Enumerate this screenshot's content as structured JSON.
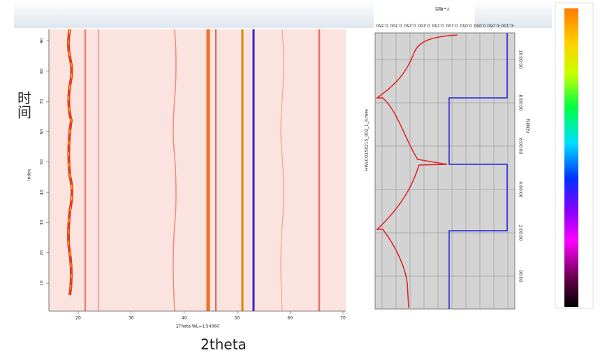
{
  "left_plot": {
    "side_label": "时间",
    "bottom_label": "2theta",
    "x_title": "2Theta WL=1.54060",
    "y_title": "Index",
    "xticks": [
      "20",
      "30",
      "40",
      "50",
      "60",
      "70"
    ],
    "yticks": [
      "10",
      "20",
      "30",
      "40",
      "50",
      "60",
      "70",
      "80",
      "90"
    ]
  },
  "right_plot": {
    "top_title": "Y=电压",
    "file_label": "HWLCO150215_002_1_4.mes",
    "right_title": "时间(h)",
    "top_ticks": [
      "0.350",
      "0.300",
      "0.250",
      "0.200",
      "0.150",
      "0.100",
      "0.050",
      "0.000",
      "-0.050",
      "-0.100"
    ],
    "right_ticks": [
      "10:00:00",
      "8:00:00",
      "6:00:00",
      "4:00:00",
      "2:00:00",
      "00:00"
    ]
  }
}
